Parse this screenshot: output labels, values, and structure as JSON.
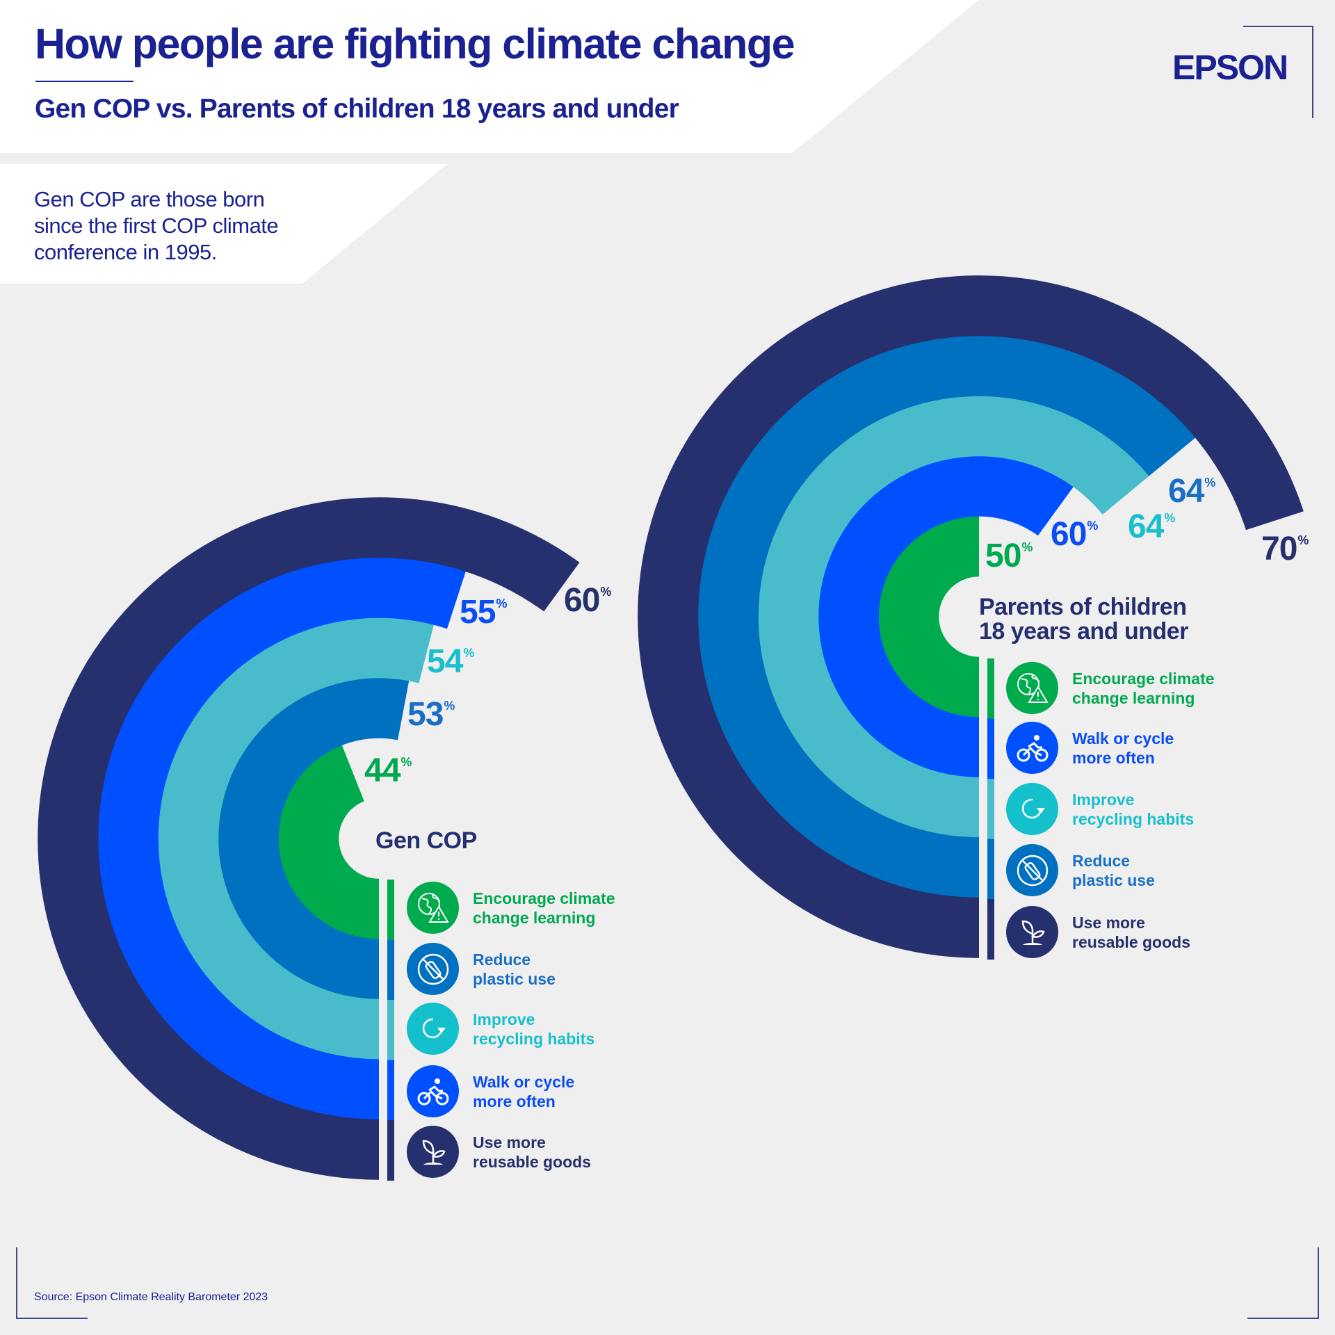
{
  "header": {
    "title": "How people are fighting climate change",
    "subtitle": "Gen COP vs. Parents of children 18 years and under",
    "description": "Gen COP are those born\nsince the first COP climate\nconference in 1995.",
    "logo": "EPSON"
  },
  "footer": {
    "source": "Source: Epson Climate Reality Barometer 2023"
  },
  "colors": {
    "navy": "#27306f",
    "bright_blue": "#0050ff",
    "teal": "#49bccc",
    "medium_blue": "#0070c0",
    "green": "#00ab4e",
    "text_navy": "#1a2190"
  },
  "chart_data": [
    {
      "type": "radial-bar",
      "title": "Gen COP",
      "unit": "%",
      "categories": [
        "Encourage climate change learning",
        "Reduce plastic use",
        "Improve recycling habits",
        "Walk or cycle more often",
        "Use more reusable goods"
      ],
      "values": [
        44,
        53,
        54,
        55,
        60
      ],
      "colors": [
        "#00ab4e",
        "#0070c0",
        "#49bccc",
        "#0050ff",
        "#27306f"
      ],
      "label_colors": [
        "#00a94f",
        "#1a6fc4",
        "#17c0cc",
        "#0b4df5",
        "#26306b"
      ],
      "icons": [
        "globe-warning-icon",
        "no-plastic-bottle-icon",
        "recycle-arrow-icon",
        "cyclist-icon",
        "sprout-icon"
      ],
      "legend": [
        "Encourage climate\nchange learning",
        "Reduce\nplastic use",
        "Improve\nrecycling habits",
        "Walk or cycle\nmore often",
        "Use more\nreusable goods"
      ]
    },
    {
      "type": "radial-bar",
      "title": "Parents of children\n18 years and under",
      "unit": "%",
      "categories": [
        "Encourage climate change learning",
        "Walk or cycle more often",
        "Improve recycling habits",
        "Reduce plastic use",
        "Use more reusable goods"
      ],
      "values": [
        50,
        60,
        64,
        64,
        70
      ],
      "colors": [
        "#00ab4e",
        "#0050ff",
        "#49bccc",
        "#0070c0",
        "#27306f"
      ],
      "label_colors": [
        "#00a94f",
        "#0b4df5",
        "#17c0cc",
        "#1a6fc4",
        "#26306b"
      ],
      "icons": [
        "globe-warning-icon",
        "cyclist-icon",
        "recycle-arrow-icon",
        "no-plastic-bottle-icon",
        "sprout-icon"
      ],
      "legend": [
        "Encourage climate\nchange learning",
        "Walk or cycle\nmore often",
        "Improve\nrecycling habits",
        "Reduce\nplastic use",
        "Use more\nreusable goods"
      ]
    }
  ]
}
